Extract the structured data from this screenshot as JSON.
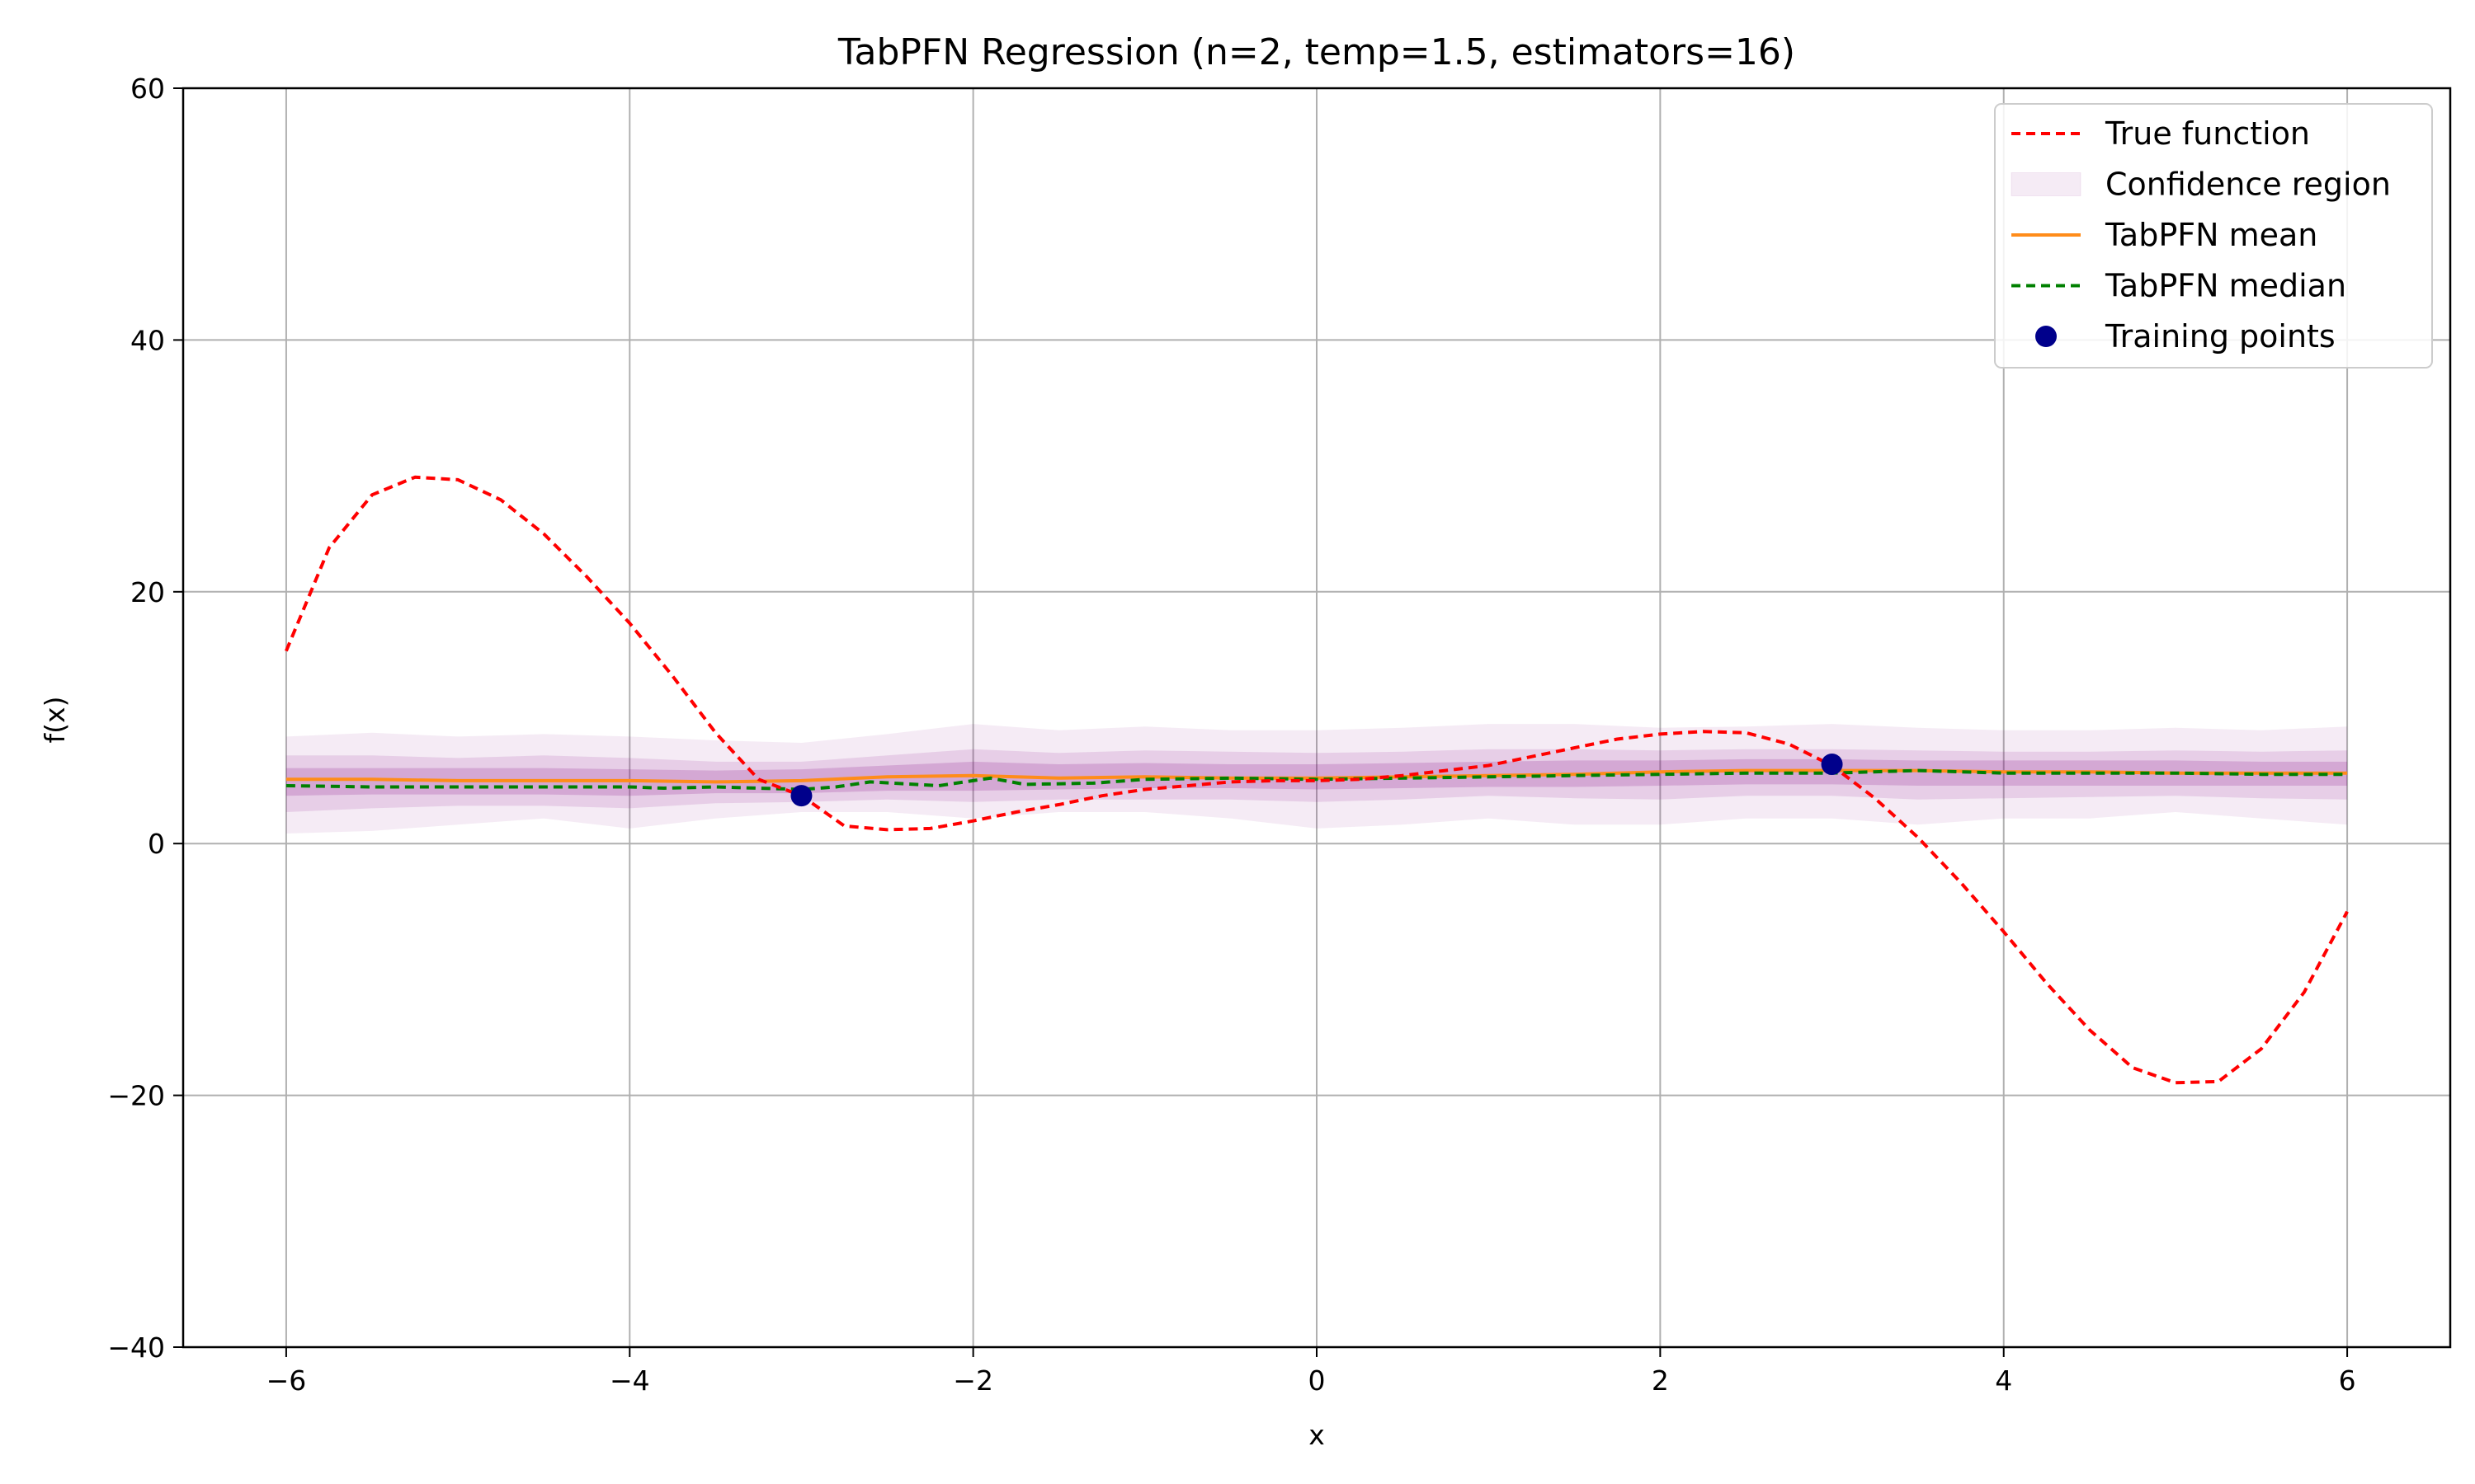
{
  "chart_data": {
    "type": "line",
    "title": "TabPFN Regression (n=2, temp=1.5, estimators=16)",
    "xlabel": "x",
    "ylabel": "f(x)",
    "xlim": [
      -6.6,
      6.6
    ],
    "ylim": [
      -40,
      60
    ],
    "xticks": [
      -6,
      -4,
      -2,
      0,
      2,
      4,
      6
    ],
    "yticks": [
      -40,
      -20,
      0,
      20,
      40,
      60
    ],
    "xtick_labels": [
      "−6",
      "−4",
      "−2",
      "0",
      "2",
      "4",
      "6"
    ],
    "ytick_labels": [
      "−40",
      "−20",
      "0",
      "20",
      "40",
      "60"
    ],
    "grid": true,
    "legend_position": "top-right",
    "colors": {
      "true_function": "#ff0000",
      "mean": "#ff8c1a",
      "median": "#008000",
      "training": "#00008b",
      "band": "#800080",
      "grid": "#b0b0b0"
    },
    "legend": [
      {
        "key": "true",
        "label": "True function"
      },
      {
        "key": "band",
        "label": "Confidence region"
      },
      {
        "key": "mean",
        "label": "TabPFN mean"
      },
      {
        "key": "median",
        "label": "TabPFN median"
      },
      {
        "key": "train",
        "label": "Training points"
      }
    ],
    "series": [
      {
        "name": "True function",
        "style": "dashed",
        "x": [
          -6.0,
          -5.75,
          -5.5,
          -5.25,
          -5.0,
          -4.75,
          -4.5,
          -4.25,
          -4.0,
          -3.75,
          -3.5,
          -3.25,
          -3.0,
          -2.75,
          -2.5,
          -2.25,
          -2.0,
          -1.75,
          -1.5,
          -1.25,
          -1.0,
          -0.75,
          -0.5,
          -0.25,
          0.0,
          0.25,
          0.5,
          0.75,
          1.0,
          1.25,
          1.5,
          1.75,
          2.0,
          2.25,
          2.5,
          2.75,
          3.0,
          3.25,
          3.5,
          3.75,
          4.0,
          4.25,
          4.5,
          4.75,
          5.0,
          5.25,
          5.5,
          5.75,
          6.0
        ],
        "y": [
          15.3,
          23.5,
          27.7,
          29.1,
          28.9,
          27.3,
          24.6,
          21.2,
          17.5,
          13.3,
          8.8,
          5.1,
          3.8,
          1.4,
          1.1,
          1.2,
          1.8,
          2.5,
          3.1,
          3.8,
          4.3,
          4.6,
          4.9,
          5.0,
          5.0,
          5.1,
          5.4,
          5.8,
          6.2,
          6.9,
          7.6,
          8.3,
          8.7,
          8.9,
          8.8,
          7.9,
          6.2,
          3.6,
          0.5,
          -3.1,
          -7.0,
          -11.1,
          -14.8,
          -17.8,
          -19.0,
          -18.9,
          -16.3,
          -11.8,
          -5.4
        ]
      },
      {
        "name": "TabPFN mean",
        "x": [
          -6.0,
          -5.5,
          -5.0,
          -4.5,
          -4.0,
          -3.5,
          -3.0,
          -2.5,
          -2.0,
          -1.5,
          -1.0,
          -0.5,
          0.0,
          0.5,
          1.0,
          1.5,
          2.0,
          2.5,
          3.0,
          3.5,
          4.0,
          4.5,
          5.0,
          5.5,
          6.0
        ],
        "y": [
          5.1,
          5.1,
          5.0,
          5.0,
          5.0,
          4.9,
          5.0,
          5.3,
          5.4,
          5.2,
          5.3,
          5.2,
          5.2,
          5.3,
          5.4,
          5.5,
          5.7,
          5.8,
          5.8,
          5.8,
          5.7,
          5.7,
          5.6,
          5.6,
          5.6
        ]
      },
      {
        "name": "TabPFN median",
        "style": "dashed",
        "x": [
          -6.0,
          -5.5,
          -5.0,
          -4.5,
          -4.0,
          -3.8,
          -3.5,
          -3.0,
          -2.8,
          -2.6,
          -2.2,
          -1.9,
          -1.7,
          -1.3,
          -1.0,
          -0.5,
          0.0,
          0.5,
          1.0,
          1.5,
          2.0,
          2.5,
          3.0,
          3.5,
          4.0,
          4.5,
          5.0,
          5.5,
          6.0
        ],
        "y": [
          4.6,
          4.5,
          4.5,
          4.5,
          4.5,
          4.4,
          4.5,
          4.3,
          4.5,
          4.9,
          4.6,
          5.2,
          4.7,
          4.8,
          5.1,
          5.2,
          5.1,
          5.2,
          5.3,
          5.4,
          5.5,
          5.6,
          5.6,
          5.8,
          5.6,
          5.6,
          5.6,
          5.5,
          5.5
        ]
      }
    ],
    "confidence_bands": {
      "x": [
        -6.0,
        -5.5,
        -5.0,
        -4.5,
        -4.0,
        -3.5,
        -3.0,
        -2.5,
        -2.0,
        -1.5,
        -1.0,
        -0.5,
        0.0,
        0.5,
        1.0,
        1.5,
        2.0,
        2.5,
        3.0,
        3.5,
        4.0,
        4.5,
        5.0,
        5.5,
        6.0
      ],
      "outer_lower": [
        0.8,
        1.0,
        1.5,
        2.0,
        1.2,
        2.0,
        2.5,
        2.5,
        2.0,
        2.5,
        2.5,
        2.0,
        1.2,
        1.5,
        2.0,
        1.5,
        1.5,
        2.0,
        2.0,
        1.5,
        2.0,
        2.0,
        2.5,
        2.0,
        1.5
      ],
      "outer_upper": [
        8.5,
        8.8,
        8.5,
        8.7,
        8.5,
        8.2,
        8.0,
        8.7,
        9.5,
        9.0,
        9.3,
        9.0,
        9.0,
        9.2,
        9.5,
        9.5,
        9.2,
        9.3,
        9.5,
        9.2,
        9.0,
        9.0,
        9.2,
        9.0,
        9.3
      ],
      "middle_lower": [
        2.5,
        2.8,
        3.0,
        3.0,
        2.8,
        3.2,
        3.3,
        3.5,
        3.3,
        3.5,
        3.5,
        3.5,
        3.3,
        3.5,
        3.8,
        3.6,
        3.5,
        3.8,
        3.8,
        3.5,
        3.6,
        3.7,
        3.8,
        3.6,
        3.5
      ],
      "middle_upper": [
        7.0,
        7.0,
        6.8,
        7.0,
        6.8,
        6.5,
        6.5,
        7.0,
        7.5,
        7.2,
        7.4,
        7.3,
        7.2,
        7.3,
        7.5,
        7.5,
        7.4,
        7.5,
        7.5,
        7.4,
        7.3,
        7.3,
        7.4,
        7.3,
        7.4
      ],
      "inner_lower": [
        3.8,
        3.9,
        3.9,
        3.9,
        3.8,
        4.0,
        4.0,
        4.2,
        4.2,
        4.3,
        4.4,
        4.4,
        4.3,
        4.4,
        4.5,
        4.5,
        4.6,
        4.7,
        4.7,
        4.6,
        4.6,
        4.6,
        4.6,
        4.6,
        4.6
      ],
      "inner_upper": [
        6.0,
        6.0,
        6.0,
        6.0,
        5.9,
        5.8,
        5.9,
        6.2,
        6.5,
        6.3,
        6.4,
        6.3,
        6.3,
        6.4,
        6.5,
        6.6,
        6.6,
        6.7,
        6.7,
        6.6,
        6.6,
        6.6,
        6.6,
        6.5,
        6.5
      ]
    },
    "training_points": [
      {
        "x": -3.0,
        "y": 3.8
      },
      {
        "x": 3.0,
        "y": 6.3
      }
    ]
  }
}
